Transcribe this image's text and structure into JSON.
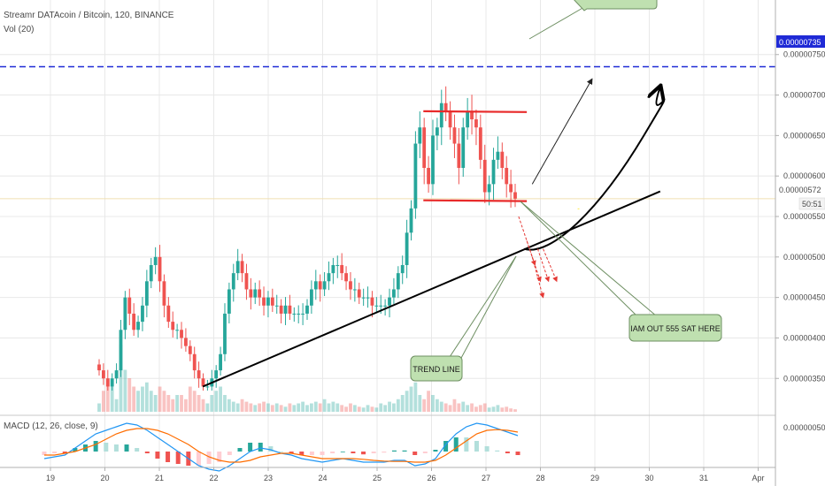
{
  "header": {
    "symbol_line": "Streamr DATAcoin / Bitcoin, 120, BINANCE",
    "volume_line": "Vol (20)",
    "macd_line": "MACD (12, 26, close, 9)"
  },
  "colors": {
    "up": "#26a69a",
    "down": "#ef5350",
    "grid": "#e8e8e8",
    "separator": "#c8c8c8",
    "target_line": "#1f2ad6",
    "price_line": "#f0dfb0",
    "triangle": "#ffeb3b",
    "flag_lines": "#e82a2a",
    "trend": "#000000",
    "callout_fill": "#bfe0b0",
    "callout_stroke": "#6e8f62",
    "macd_line": "#2196f3",
    "signal_line": "#ff6d00"
  },
  "price_axis": {
    "ticks": [
      "0.00000750",
      "0.00000700",
      "0.00000650",
      "0.00000600",
      "0.00000550",
      "0.00000500",
      "0.00000450",
      "0.00000400",
      "0.00000350"
    ],
    "target_label": "0.00000735",
    "last_price_label": "0.00000572",
    "countdown": "50:51"
  },
  "macd_axis": {
    "tick": "0.00000050"
  },
  "time_axis": {
    "labels": [
      "19",
      "20",
      "21",
      "22",
      "23",
      "24",
      "25",
      "26",
      "27",
      "28",
      "29",
      "30",
      "31",
      "Apr"
    ]
  },
  "annotations": {
    "trend_line_label": "TREND LINE",
    "exit_label": "IAM OUT 555 SAT HERE"
  },
  "chart_data": {
    "type": "candlestick",
    "title": "Streamr DATAcoin / Bitcoin, 120, BINANCE",
    "interval": "120",
    "exchange": "BINANCE",
    "x_unit": "day of month (March), 2-hour candles",
    "y_unit": "BTC",
    "ylim": [
      3.35e-06,
      7.65e-06
    ],
    "target_price": 7.35e-06,
    "last_price": 5.72e-06,
    "candle_closes": [
      3.6e-06,
      3.5e-06,
      3.4e-06,
      3.5e-06,
      3.6e-06,
      4.1e-06,
      4.5e-06,
      4.3e-06,
      4.1e-06,
      4.2e-06,
      4.4e-06,
      4.7e-06,
      4.9e-06,
      5e-06,
      4.7e-06,
      4.4e-06,
      4.2e-06,
      4.1e-06,
      4.1e-06,
      4e-06,
      3.9e-06,
      3.8e-06,
      3.6e-06,
      3.5e-06,
      3.4e-06,
      3.4e-06,
      3.5e-06,
      3.6e-06,
      3.8e-06,
      4.3e-06,
      4.6e-06,
      4.8e-06,
      4.95e-06,
      4.8e-06,
      4.6e-06,
      4.5e-06,
      4.6e-06,
      4.5e-06,
      4.4e-06,
      4.5e-06,
      4.4e-06,
      4.4e-06,
      4.3e-06,
      4.4e-06,
      4.3e-06,
      4.3e-06,
      4.3e-06,
      4.3e-06,
      4.4e-06,
      4.6e-06,
      4.7e-06,
      4.6e-06,
      4.7e-06,
      4.8e-06,
      4.9e-06,
      4.9e-06,
      4.8e-06,
      4.7e-06,
      4.6e-06,
      4.6e-06,
      4.5e-06,
      4.5e-06,
      4.5e-06,
      4.4e-06,
      4.4e-06,
      4.4e-06,
      4.4e-06,
      4.5e-06,
      4.6e-06,
      4.8e-06,
      4.9e-06,
      5.3e-06,
      5.6e-06,
      6.4e-06,
      6.6e-06,
      6.1e-06,
      5.9e-06,
      6.5e-06,
      6.6e-06,
      6.9e-06,
      6.8e-06,
      6.6e-06,
      6.4e-06,
      6.1e-06,
      6.6e-06,
      6.8e-06,
      6.7e-06,
      6.6e-06,
      6.2e-06,
      5.8e-06,
      5.9e-06,
      6.2e-06,
      6.3e-06,
      6.1e-06,
      5.9e-06,
      5.8e-06,
      5.72e-06
    ],
    "volume_scale": "relative",
    "volumes": [
      0.1,
      0.25,
      0.4,
      0.3,
      0.15,
      0.8,
      0.5,
      0.4,
      0.3,
      0.25,
      0.3,
      0.35,
      0.25,
      0.2,
      0.3,
      0.25,
      0.2,
      0.15,
      0.2,
      0.2,
      0.15,
      0.3,
      0.25,
      0.2,
      0.15,
      0.1,
      0.2,
      0.25,
      0.3,
      0.2,
      0.15,
      0.12,
      0.1,
      0.15,
      0.12,
      0.1,
      0.08,
      0.1,
      0.12,
      0.1,
      0.08,
      0.1,
      0.08,
      0.06,
      0.1,
      0.08,
      0.1,
      0.12,
      0.08,
      0.1,
      0.12,
      0.1,
      0.15,
      0.1,
      0.12,
      0.1,
      0.08,
      0.06,
      0.1,
      0.08,
      0.06,
      0.05,
      0.08,
      0.06,
      0.05,
      0.1,
      0.08,
      0.12,
      0.1,
      0.15,
      0.2,
      0.25,
      0.3,
      0.35,
      0.2,
      0.15,
      0.25,
      0.2,
      0.15,
      0.12,
      0.1,
      0.08,
      0.15,
      0.1,
      0.12,
      0.08,
      0.1,
      0.06,
      0.08,
      0.1,
      0.05,
      0.06,
      0.08,
      0.05,
      0.06,
      0.04,
      0.03
    ],
    "macd_scale": "relative",
    "macd": [
      -0.2,
      -0.15,
      -0.1,
      0.1,
      0.3,
      0.5,
      0.6,
      0.7,
      0.8,
      0.75,
      0.6,
      0.4,
      0.2,
      0.0,
      -0.2,
      -0.4,
      -0.5,
      -0.55,
      -0.4,
      -0.2,
      0.0,
      0.1,
      0.05,
      -0.05,
      -0.1,
      -0.2,
      -0.25,
      -0.3,
      -0.25,
      -0.2,
      -0.25,
      -0.3,
      -0.3,
      -0.3,
      -0.25,
      -0.25,
      -0.4,
      -0.35,
      -0.2,
      0.2,
      0.5,
      0.7,
      0.8,
      0.75,
      0.65,
      0.55,
      0.45
    ],
    "macd_signal": [
      -0.1,
      -0.1,
      -0.05,
      0.0,
      0.1,
      0.2,
      0.35,
      0.5,
      0.6,
      0.65,
      0.65,
      0.6,
      0.5,
      0.35,
      0.2,
      0.0,
      -0.15,
      -0.25,
      -0.3,
      -0.3,
      -0.25,
      -0.15,
      -0.1,
      -0.05,
      -0.05,
      -0.1,
      -0.15,
      -0.2,
      -0.2,
      -0.2,
      -0.2,
      -0.22,
      -0.25,
      -0.27,
      -0.28,
      -0.28,
      -0.3,
      -0.3,
      -0.25,
      -0.1,
      0.1,
      0.3,
      0.5,
      0.6,
      0.62,
      0.6,
      0.55
    ],
    "patterns": [
      {
        "kind": "descending-triangle-top",
        "from": [
          26.15,
          7.1e-06
        ],
        "to": [
          28.7,
          5.6e-06
        ]
      },
      {
        "kind": "descending-triangle-bottom",
        "from": [
          25.95,
          5.5e-06
        ],
        "to": [
          28.7,
          5.59e-06
        ]
      },
      {
        "kind": "resistance",
        "from": [
          25.85,
          6.8e-06
        ],
        "to": [
          27.75,
          6.79e-06
        ]
      },
      {
        "kind": "support",
        "from": [
          25.85,
          5.7e-06
        ],
        "to": [
          27.75,
          5.69e-06
        ]
      },
      {
        "kind": "trend-line",
        "from": [
          21.8,
          3.4e-06
        ],
        "to": [
          30.2,
          5.81e-06
        ]
      },
      {
        "kind": "projection-curve",
        "points": [
          [
            27.7,
            5.1e-06
          ],
          [
            28.2,
            5e-06
          ],
          [
            29.1,
            5.6e-06
          ],
          [
            29.9,
            6.5e-06
          ],
          [
            30.2,
            7.1e-06
          ]
        ]
      },
      {
        "kind": "projection-arrow",
        "from": [
          27.85,
          5.9e-06
        ],
        "to": [
          28.95,
          7.2e-06
        ]
      },
      {
        "kind": "target",
        "from": [
          19.2,
          7.35e-06
        ],
        "to": [
          32.0,
          7.35e-06
        ]
      }
    ]
  }
}
